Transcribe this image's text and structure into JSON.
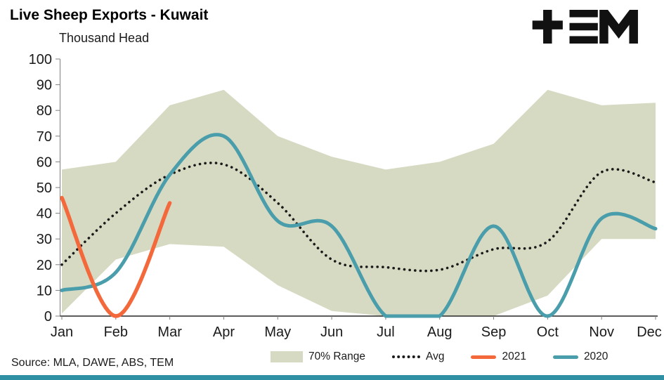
{
  "title": "Live Sheep Exports - Kuwait",
  "ylabel": "Thousand Head",
  "source": "Source: MLA, DAWE, ABS, TEM",
  "logo_name": "TEM",
  "colors": {
    "band": "#d7dac2",
    "avg": "#1a1a1a",
    "y2021": "#f3693c",
    "y2020": "#4a9dab",
    "bottom_bar": "#2f8fa3",
    "axis": "#262626",
    "tick": "#7f7f7f"
  },
  "legend": [
    {
      "label": "70% Range",
      "swatch": "band",
      "color": "#d7dac2"
    },
    {
      "label": "Avg",
      "swatch": "dots",
      "color": "#1a1a1a"
    },
    {
      "label": "2021",
      "swatch": "line",
      "color": "#f3693c"
    },
    {
      "label": "2020",
      "swatch": "line",
      "color": "#4a9dab"
    }
  ],
  "chart_data": {
    "type": "line",
    "title": "Live Sheep Exports - Kuwait",
    "unit_label": "Thousand Head",
    "categories": [
      "Jan",
      "Feb",
      "Mar",
      "Apr",
      "May",
      "Jun",
      "Jul",
      "Aug",
      "Sep",
      "Oct",
      "Nov",
      "Dec"
    ],
    "ylim": [
      0,
      100
    ],
    "y_ticks": [
      0,
      10,
      20,
      30,
      40,
      50,
      60,
      70,
      80,
      90,
      100
    ],
    "grid": false,
    "legend_position": "bottom",
    "band": {
      "name": "70% Range",
      "color": "#d7dac2",
      "upper": [
        57,
        60,
        82,
        88,
        70,
        62,
        57,
        60,
        67,
        88,
        82,
        83
      ],
      "lower": [
        1,
        22,
        28,
        27,
        12,
        2,
        0,
        0,
        0,
        8,
        30,
        30
      ]
    },
    "series": [
      {
        "name": "Avg",
        "style": "dotted",
        "color": "#1a1a1a",
        "values": [
          20,
          40,
          55,
          59,
          44,
          22,
          19,
          18,
          26,
          29,
          56,
          52
        ]
      },
      {
        "name": "2020",
        "style": "solid",
        "color": "#4a9dab",
        "values": [
          10,
          17,
          55,
          70,
          37,
          35,
          0,
          0,
          35,
          0,
          38,
          34
        ]
      },
      {
        "name": "2021",
        "style": "solid",
        "color": "#f3693c",
        "values": [
          46,
          0,
          44,
          null,
          null,
          null,
          null,
          null,
          null,
          null,
          null,
          null
        ]
      }
    ]
  }
}
